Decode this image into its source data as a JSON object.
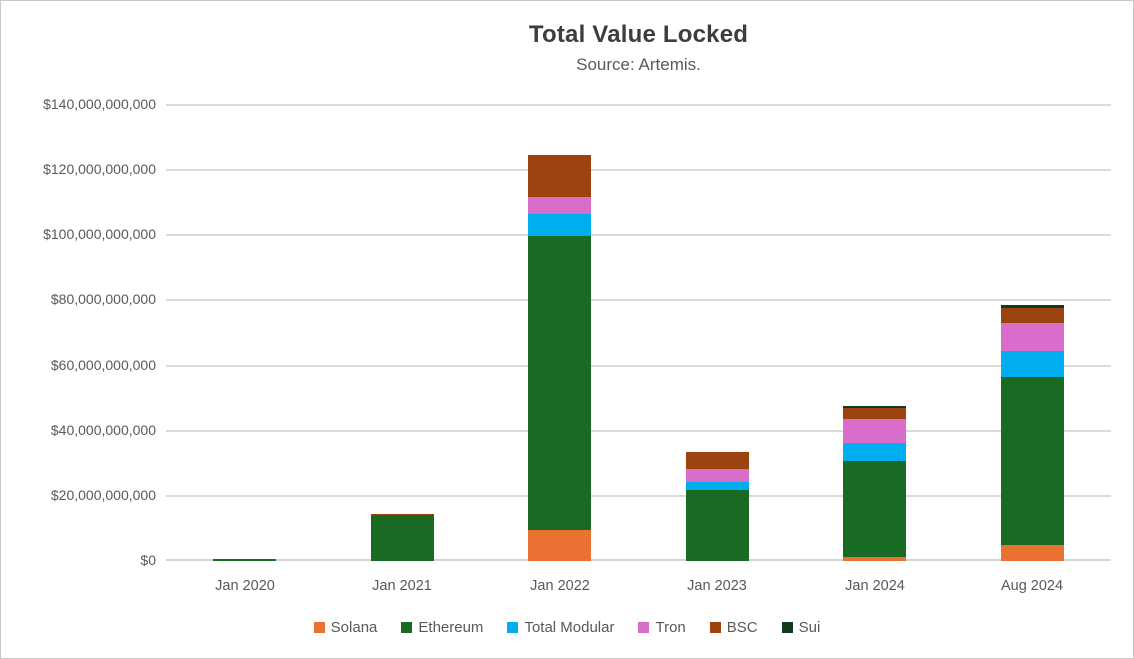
{
  "title": "Total Value Locked",
  "subtitle": "Source: Artemis.",
  "chart_data": {
    "type": "bar",
    "stacked": true,
    "title": "Total Value Locked",
    "subtitle": "Source: Artemis.",
    "xlabel": "",
    "ylabel": "",
    "grid": true,
    "legend_position": "bottom",
    "value_unit": "USD (values stored in billions)",
    "categories": [
      "Jan 2020",
      "Jan 2021",
      "Jan 2022",
      "Jan 2023",
      "Jan 2024",
      "Aug 2024"
    ],
    "series": [
      {
        "name": "Solana",
        "color": "#E97132",
        "values": [
          0,
          0,
          9.4,
          0,
          1.3,
          4.9
        ]
      },
      {
        "name": "Ethereum",
        "color": "#196B24",
        "values": [
          0.6,
          14.2,
          90.5,
          21.7,
          29.5,
          51.5
        ]
      },
      {
        "name": "Total Modular",
        "color": "#00AEEF",
        "values": [
          0,
          0,
          6.7,
          2.7,
          5.3,
          8.0
        ]
      },
      {
        "name": "Tron",
        "color": "#D86DCB",
        "values": [
          0,
          0,
          5.1,
          3.9,
          7.5,
          8.8
        ]
      },
      {
        "name": "BSC",
        "color": "#9C4310",
        "values": [
          0,
          0.3,
          13.0,
          5.1,
          3.5,
          4.5
        ]
      },
      {
        "name": "Sui",
        "color": "#123B1D",
        "values": [
          0,
          0,
          0,
          0,
          0.6,
          1.0
        ]
      }
    ],
    "totals_billions": [
      0.6,
      14.5,
      124.7,
      33.4,
      47.7,
      78.7
    ],
    "ylim": [
      0,
      140
    ],
    "yticks": [
      {
        "value": 0,
        "label": "$0"
      },
      {
        "value": 20,
        "label": "$20,000,000,000"
      },
      {
        "value": 40,
        "label": "$40,000,000,000"
      },
      {
        "value": 60,
        "label": "$60,000,000,000"
      },
      {
        "value": 80,
        "label": "$80,000,000,000"
      },
      {
        "value": 100,
        "label": "$100,000,000,000"
      },
      {
        "value": 120,
        "label": "$120,000,000,000"
      },
      {
        "value": 140,
        "label": "$140,000,000,000"
      }
    ]
  },
  "colors": {
    "gridline": "#DBDBDB",
    "title_text": "#3D3D3D",
    "secondary_text": "#595959",
    "background": "#FFFFFF",
    "border": "#C9C9C9"
  }
}
